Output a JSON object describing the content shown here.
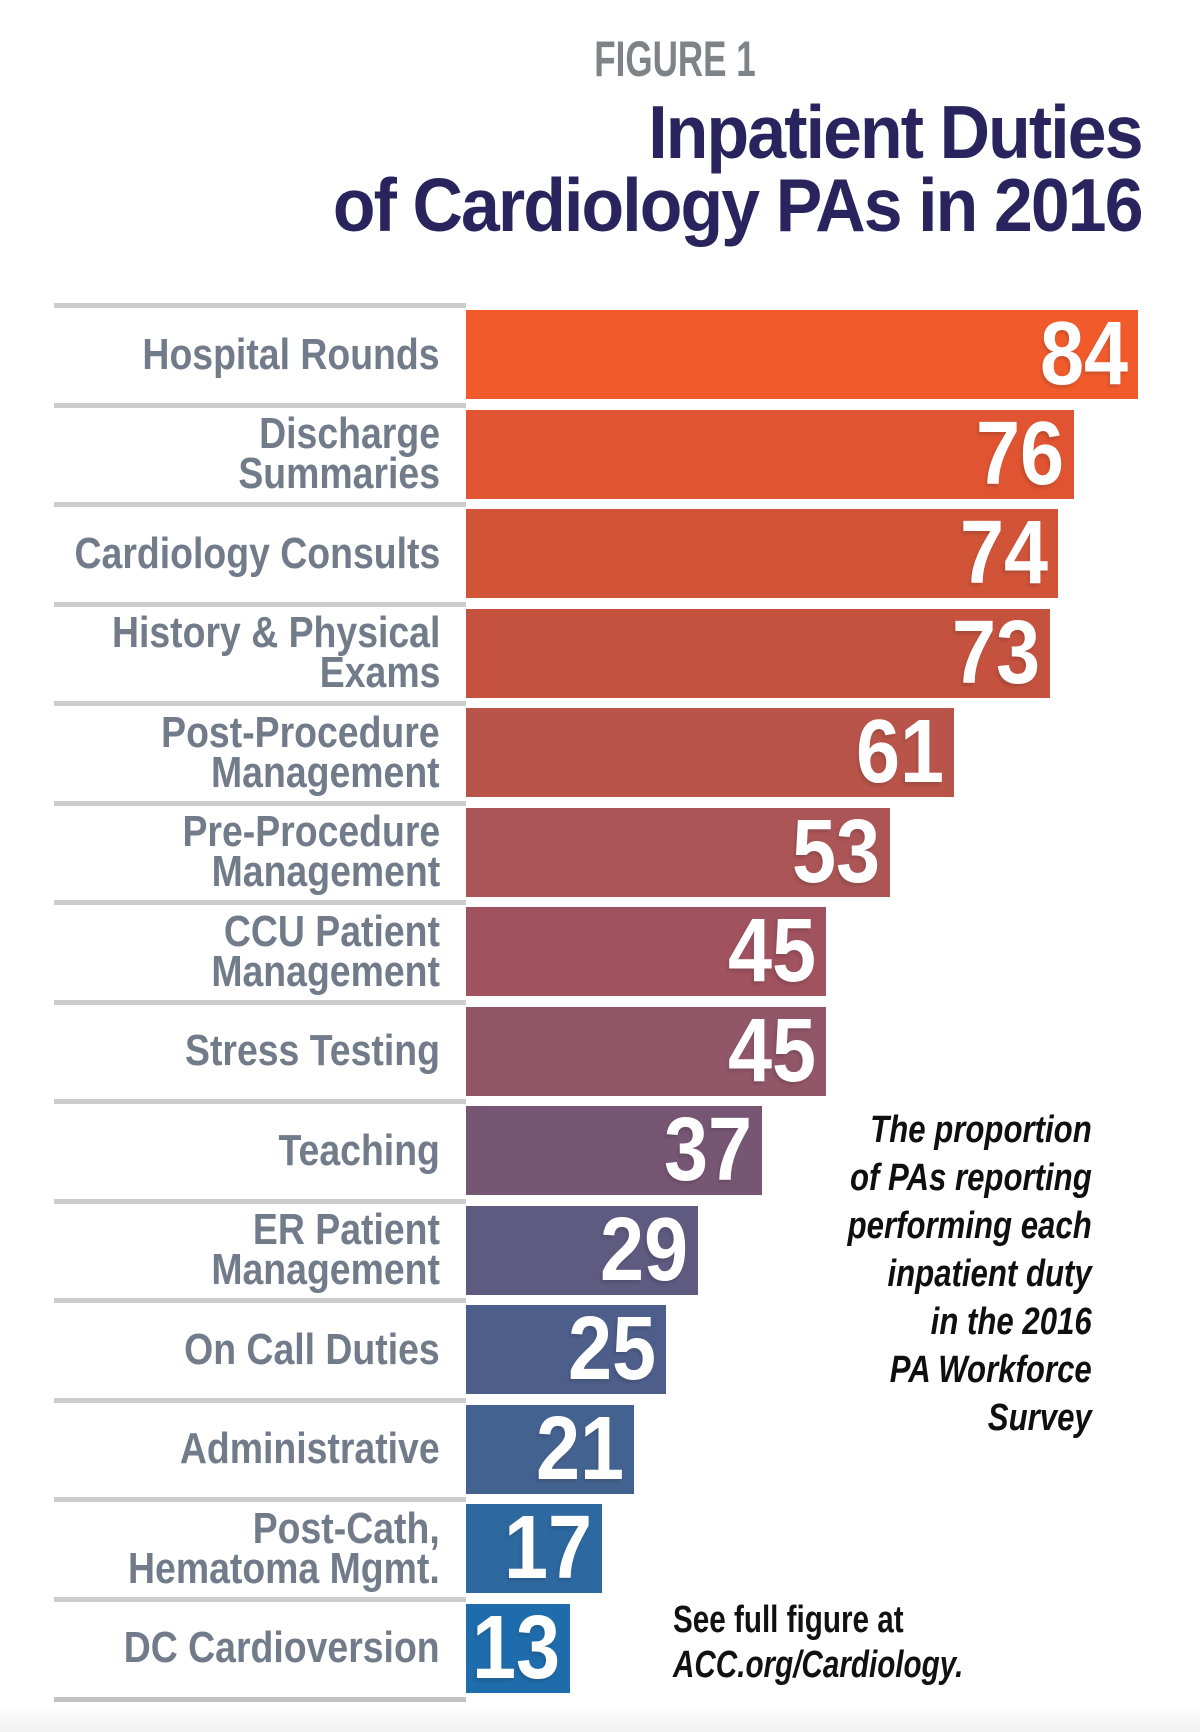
{
  "figure_label": "FIGURE 1",
  "title": "Inpatient Duties\nof Cardiology PAs in 2016",
  "annotation": "The proportion\nof PAs reporting\nperforming each\ninpatient duty\nin the 2016\nPA Workforce\nSurvey",
  "footer": {
    "line1": "See full figure at",
    "line2": "ACC.org/Cardiology."
  },
  "colors": {
    "title_text": "#29245D",
    "figure_label_text": "#7E8387",
    "category_label_text": "#717B89",
    "separator": "#CCCCCC",
    "value_text": "#FFFFFF",
    "background": "#FFFFFF"
  },
  "chart_data": {
    "type": "bar",
    "orientation": "horizontal",
    "title": "Inpatient Duties of Cardiology PAs in 2016",
    "subtitle": "FIGURE 1",
    "value_meaning": "Percent of PAs reporting performing each inpatient duty in the 2016 PA Workforce Survey",
    "xlim": [
      0,
      84
    ],
    "grid": false,
    "legend": "none",
    "value_labels_inside_bars": true,
    "categories": [
      "Hospital Rounds",
      "Discharge Summaries",
      "Cardiology Consults",
      "History & Physical\nExams",
      "Post-Procedure\nManagement",
      "Pre-Procedure\nManagement",
      "CCU Patient\nManagement",
      "Stress Testing",
      "Teaching",
      "ER Patient\nManagement",
      "On Call Duties",
      "Administrative",
      "Post-Cath,\nHematoma Mgmt.",
      "DC Cardioversion"
    ],
    "values": [
      84,
      76,
      74,
      73,
      61,
      53,
      45,
      45,
      37,
      29,
      25,
      21,
      17,
      13
    ],
    "bar_colors": [
      "#F15B2C",
      "#E05431",
      "#D25438",
      "#C5523F",
      "#B9544A",
      "#AC5556",
      "#A0525E",
      "#925669",
      "#775674",
      "#5E5A80",
      "#4E5E8B",
      "#44628F",
      "#2D68A1",
      "#1E6CAB"
    ]
  }
}
